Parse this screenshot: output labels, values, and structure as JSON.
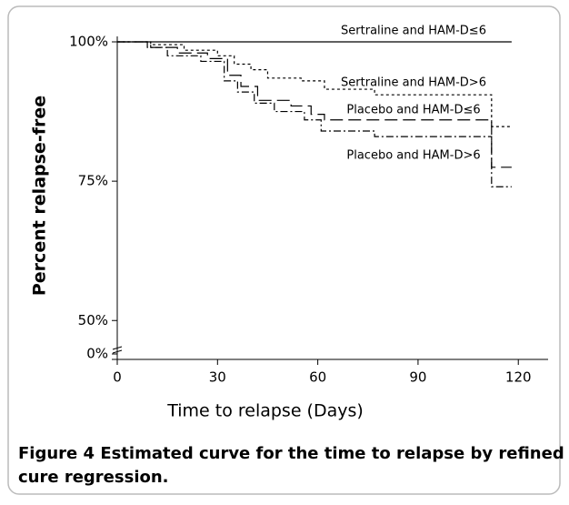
{
  "chart_data": {
    "type": "step",
    "xlabel": "Time to relapse (Days)",
    "ylabel": "Percent relapse-free",
    "xlim": [
      0,
      130
    ],
    "xticks": [
      0,
      30,
      60,
      90,
      120
    ],
    "ylim": [
      44,
      100
    ],
    "yticks": [
      {
        "value": 100,
        "label": "100%"
      },
      {
        "value": 75,
        "label": "75%"
      },
      {
        "value": 50,
        "label": "50%"
      },
      {
        "value": 0,
        "label": "0%"
      }
    ],
    "axis_break": true,
    "series": [
      {
        "name": "Sertraline and HAM-D≤6",
        "color": "#000000",
        "dash": "none",
        "x": [
          0,
          118
        ],
        "values": [
          100,
          100
        ]
      },
      {
        "name": "Sertraline and HAM-D>6",
        "color": "#000000",
        "dash": "3 3",
        "x": [
          0,
          10,
          20,
          30,
          35,
          40,
          45,
          55,
          62,
          77,
          112,
          118
        ],
        "values": [
          100,
          99.5,
          98.5,
          97.5,
          96,
          95,
          93.5,
          93,
          91.5,
          90.5,
          84.8,
          84.8
        ]
      },
      {
        "name": "Placebo and HAM-D≤6",
        "color": "#000000",
        "dash": "14 6",
        "x": [
          0,
          10,
          18,
          27,
          33,
          37,
          42,
          52,
          58,
          62,
          112,
          118
        ],
        "values": [
          100,
          99,
          98,
          97,
          94,
          92,
          89.5,
          88.5,
          87,
          86,
          77.5,
          77.5
        ]
      },
      {
        "name": "Placebo and HAM-D>6",
        "color": "#000000",
        "dash": "8 3 2 3",
        "x": [
          0,
          9,
          15,
          25,
          32,
          36,
          41,
          47,
          56,
          61,
          77,
          112,
          118
        ],
        "values": [
          100,
          99,
          97.5,
          96.5,
          93,
          91,
          89,
          87.5,
          86,
          84,
          83,
          74,
          74
        ]
      }
    ],
    "caption": {
      "label": "Figure 4",
      "text": "Estimated curve for the time to relapse by refined Cox cure regression."
    }
  }
}
